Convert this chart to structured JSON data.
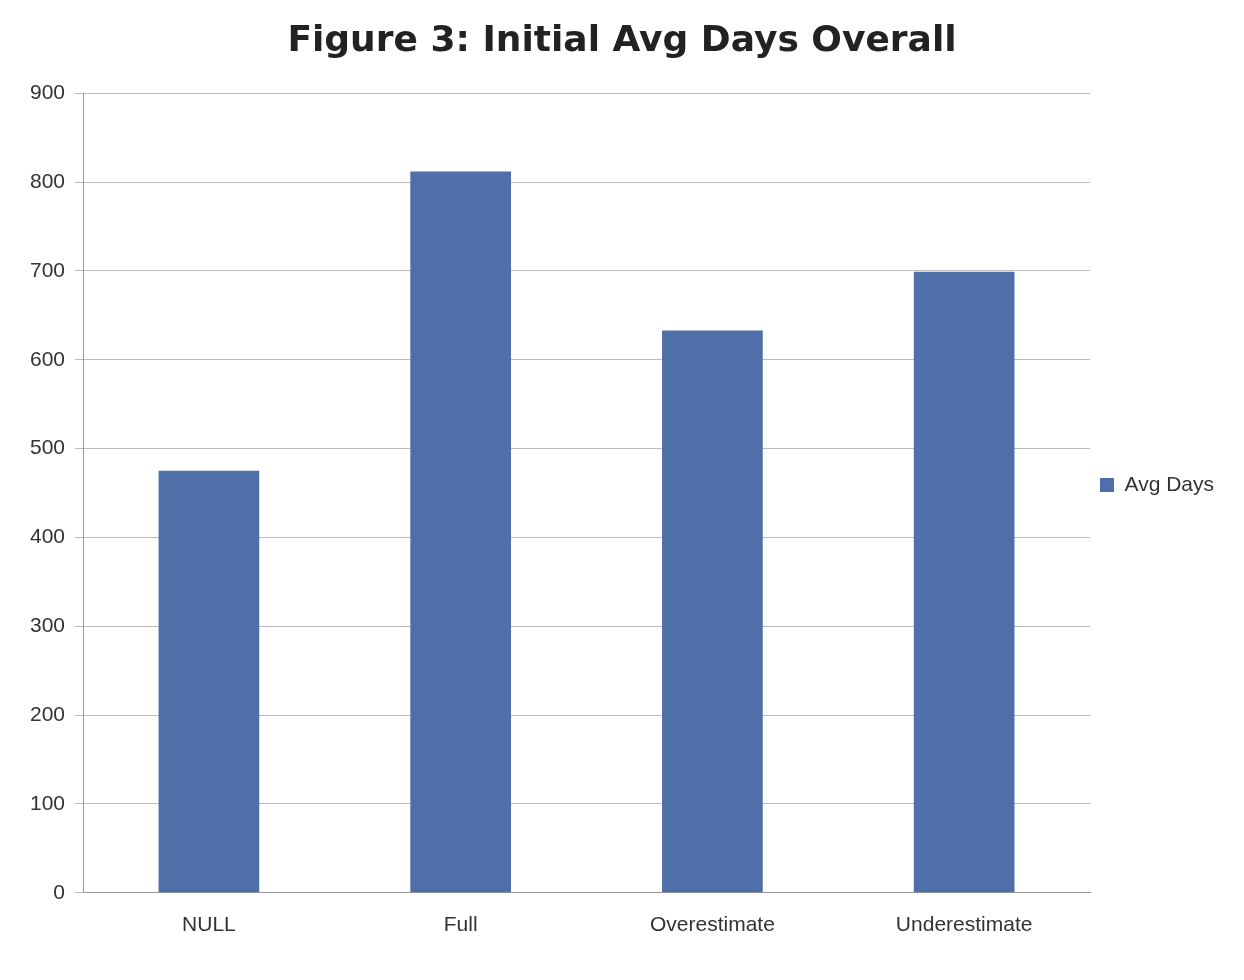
{
  "chart_data": {
    "type": "bar",
    "title": "Figure 3: Initial Avg Days Overall",
    "categories": [
      "NULL",
      "Full",
      "Overestimate",
      "Underestimate"
    ],
    "series": [
      {
        "name": "Avg Days",
        "color": "#4f6fa8",
        "values": [
          475,
          812,
          633,
          699
        ]
      }
    ],
    "ylim": [
      0,
      900
    ],
    "yticks": [
      0,
      100,
      200,
      300,
      400,
      500,
      600,
      700,
      800,
      900
    ],
    "grid": "y",
    "legend": "right"
  }
}
